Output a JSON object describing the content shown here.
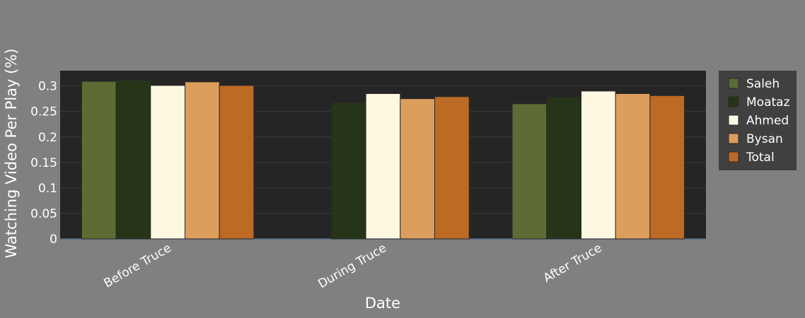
{
  "chart_data": {
    "type": "bar",
    "title": "",
    "xlabel": "Date",
    "ylabel": "Watching Video Per Play (%)",
    "categories": [
      "Before Truce",
      "During Truce",
      "After Truce"
    ],
    "ylim": [
      0,
      0.33
    ],
    "yticks": [
      0,
      0.05,
      0.1,
      0.15,
      0.2,
      0.25,
      0.3
    ],
    "ytick_labels": [
      "0",
      "0.05",
      "0.1",
      "0.15",
      "0.2",
      "0.25",
      "0.3"
    ],
    "grid": true,
    "legend_position": "right",
    "series": [
      {
        "name": "Saleh",
        "color": "#5d6c35",
        "values": [
          0.309,
          null,
          0.265
        ]
      },
      {
        "name": "Moataz",
        "color": "#263417",
        "values": [
          0.311,
          0.267,
          0.278
        ]
      },
      {
        "name": "Ahmed",
        "color": "#fff8e1",
        "values": [
          0.301,
          0.285,
          0.29
        ]
      },
      {
        "name": "Bysan",
        "color": "#dc9e5c",
        "values": [
          0.308,
          0.275,
          0.285
        ]
      },
      {
        "name": "Total",
        "color": "#bc6a24",
        "values": [
          0.301,
          0.279,
          0.281
        ]
      }
    ]
  }
}
